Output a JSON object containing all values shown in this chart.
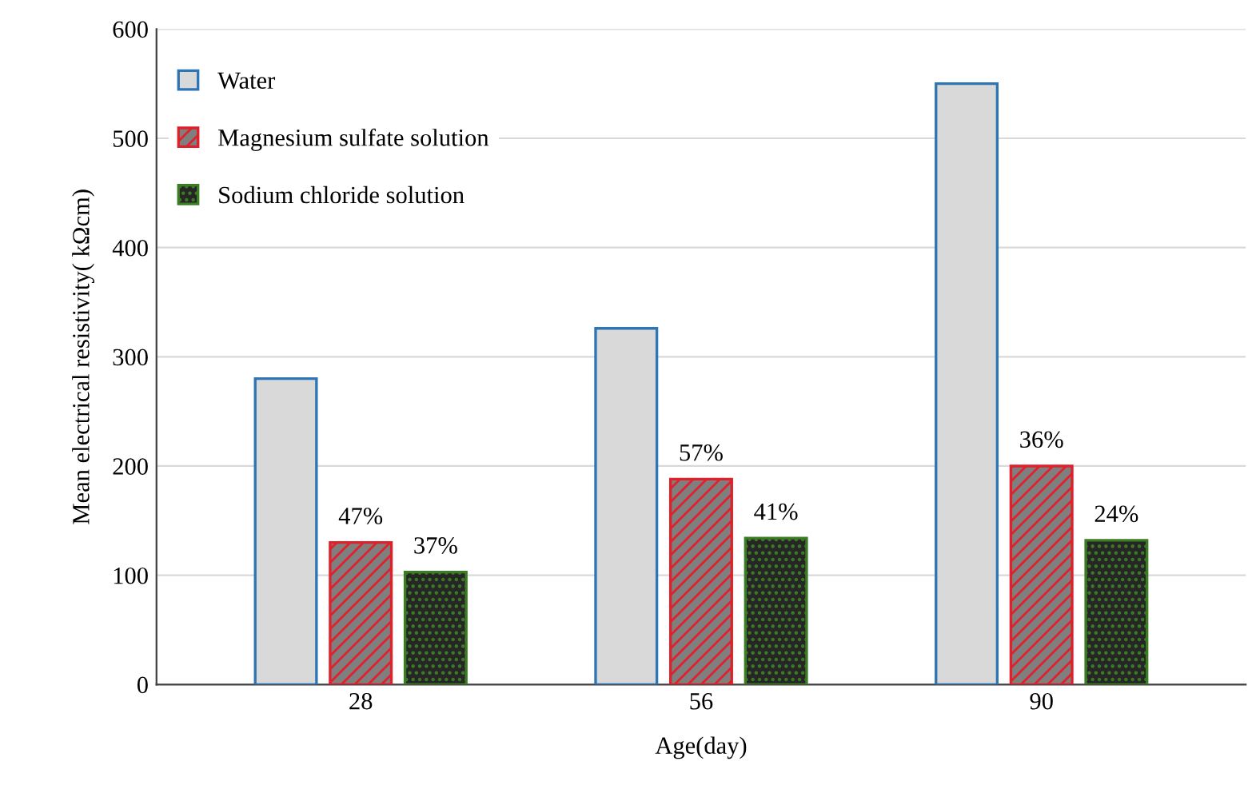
{
  "chart_data": {
    "type": "bar",
    "xlabel": "Age(day)",
    "ylabel": "Mean electrical resistivity( kΩcm)",
    "categories": [
      "28",
      "56",
      "90"
    ],
    "series": [
      {
        "name": "Water",
        "color": "#2e75b6",
        "values": [
          280,
          326,
          550
        ]
      },
      {
        "name": "Magnesium sulfate solution",
        "color": "#e0202a",
        "values": [
          130,
          188,
          200
        ]
      },
      {
        "name": "Sodium chloride solution",
        "color": "#3a7d22",
        "values": [
          103,
          134,
          132
        ]
      }
    ],
    "annotations": [
      "47%",
      "37%",
      "57%",
      "41%",
      "36%",
      "24%"
    ],
    "ylim": [
      0,
      600
    ],
    "yticks": [
      0,
      100,
      200,
      300,
      400,
      500,
      600
    ],
    "grid": "y",
    "legend": "top left"
  }
}
